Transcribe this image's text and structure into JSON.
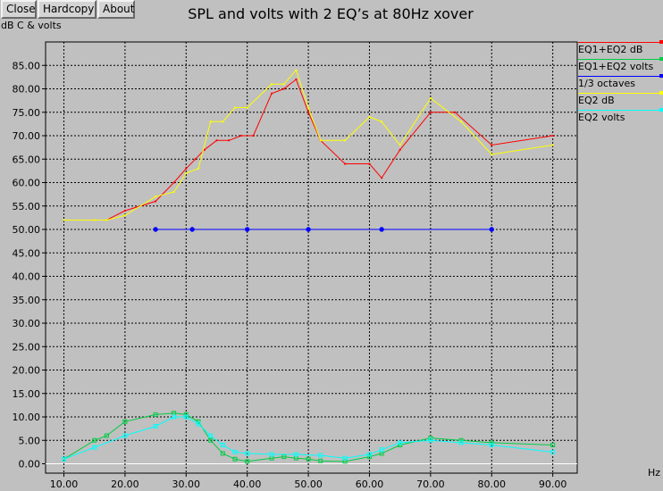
{
  "toolbar": {
    "close_label": "Close",
    "hardcopy_label": "Hardcopy",
    "about_label": "About"
  },
  "chart_data": {
    "type": "line",
    "title": "SPL and volts with 2 EQ’s at 80Hz xover",
    "ylabel": "dB C & volts",
    "xlabel": "Hz",
    "xlim": [
      7,
      94
    ],
    "ylim": [
      -2,
      90
    ],
    "xticks": [
      "10.00",
      "20.00",
      "30.00",
      "40.00",
      "50.00",
      "60.00",
      "70.00",
      "80.00",
      "90.00"
    ],
    "yticks": [
      "0.00",
      "5.00",
      "10.00",
      "15.00",
      "20.00",
      "25.00",
      "30.00",
      "35.00",
      "40.00",
      "45.00",
      "50.00",
      "55.00",
      "60.00",
      "65.00",
      "70.00",
      "75.00",
      "80.00",
      "85.00"
    ],
    "grid": true,
    "legend_placement": "right",
    "series": [
      {
        "name": "EQ1+EQ2 dB",
        "color": "#ff0000",
        "points": [
          [
            10,
            52
          ],
          [
            15,
            52
          ],
          [
            17,
            52
          ],
          [
            20,
            54
          ],
          [
            25,
            56
          ],
          [
            28,
            60
          ],
          [
            30,
            63
          ],
          [
            31.5,
            65
          ],
          [
            33,
            67
          ],
          [
            35,
            69
          ],
          [
            37,
            69
          ],
          [
            39,
            70
          ],
          [
            41,
            70
          ],
          [
            44,
            79
          ],
          [
            46,
            80
          ],
          [
            48,
            82
          ],
          [
            50,
            75
          ],
          [
            52,
            69
          ],
          [
            56,
            64
          ],
          [
            60,
            64
          ],
          [
            62,
            61
          ],
          [
            65,
            67
          ],
          [
            70,
            75
          ],
          [
            74,
            75
          ],
          [
            80,
            68
          ],
          [
            90,
            70
          ]
        ]
      },
      {
        "name": "EQ1+EQ2 volts",
        "color": "#00cc44",
        "points": [
          [
            10,
            1
          ],
          [
            15,
            5
          ],
          [
            17,
            6
          ],
          [
            20,
            9
          ],
          [
            25,
            10.5
          ],
          [
            28,
            10.8
          ],
          [
            30,
            10.5
          ],
          [
            32,
            9
          ],
          [
            34,
            5
          ],
          [
            36,
            2.2
          ],
          [
            38,
            1
          ],
          [
            40,
            0.5
          ],
          [
            44,
            1.2
          ],
          [
            46,
            1.5
          ],
          [
            48,
            1.2
          ],
          [
            50,
            1
          ],
          [
            52,
            0.6
          ],
          [
            56,
            0.5
          ],
          [
            60,
            1.5
          ],
          [
            62,
            2.2
          ],
          [
            65,
            4
          ],
          [
            70,
            5.5
          ],
          [
            75,
            5
          ],
          [
            80,
            4.5
          ],
          [
            90,
            4
          ]
        ]
      },
      {
        "name": "1/3 octaves",
        "color": "#0000ff",
        "points": [
          [
            25,
            50
          ],
          [
            31,
            50
          ],
          [
            40,
            50
          ],
          [
            50,
            50
          ],
          [
            62,
            50
          ],
          [
            80,
            50
          ]
        ]
      },
      {
        "name": "EQ2 dB",
        "color": "#ffff00",
        "points": [
          [
            10,
            52
          ],
          [
            15,
            52
          ],
          [
            17,
            52
          ],
          [
            20,
            53
          ],
          [
            25,
            57
          ],
          [
            28,
            58
          ],
          [
            30,
            62
          ],
          [
            32,
            63
          ],
          [
            34,
            73
          ],
          [
            36,
            73
          ],
          [
            38,
            76
          ],
          [
            40,
            76
          ],
          [
            44,
            81
          ],
          [
            46,
            81
          ],
          [
            48,
            84
          ],
          [
            50,
            76
          ],
          [
            52,
            69
          ],
          [
            56,
            69
          ],
          [
            60,
            74
          ],
          [
            62,
            73
          ],
          [
            65,
            68
          ],
          [
            70,
            78
          ],
          [
            75,
            73
          ],
          [
            80,
            66
          ],
          [
            90,
            68
          ]
        ]
      },
      {
        "name": "EQ2 volts",
        "color": "#00ffff",
        "points": [
          [
            10,
            1
          ],
          [
            15,
            3.5
          ],
          [
            20,
            6
          ],
          [
            25,
            8
          ],
          [
            28,
            10
          ],
          [
            30,
            10
          ],
          [
            32,
            8.5
          ],
          [
            34,
            6
          ],
          [
            36,
            4
          ],
          [
            38,
            2.5
          ],
          [
            40,
            2.2
          ],
          [
            44,
            2
          ],
          [
            48,
            2
          ],
          [
            52,
            1.8
          ],
          [
            56,
            1.2
          ],
          [
            60,
            2
          ],
          [
            62,
            3
          ],
          [
            65,
            4.5
          ],
          [
            70,
            5
          ],
          [
            75,
            4.5
          ],
          [
            80,
            4
          ],
          [
            90,
            2.5
          ]
        ]
      }
    ]
  }
}
